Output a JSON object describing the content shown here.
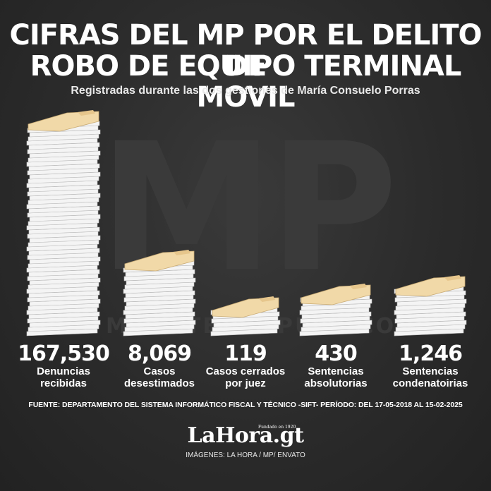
{
  "title_line1": "CIFRAS DEL MP POR EL DELITO DE",
  "title_line2": "ROBO DE EQUIPO TERMINAL MOVIL",
  "subtitle": "Registradas durante las dos gestiones de María Consuelo Porras",
  "watermark": {
    "main": "MP",
    "sub": "MINISTERIO PÚBLICO"
  },
  "chart_data": {
    "type": "bar",
    "categories": [
      "Denuncias recibidas",
      "Casos desestimados",
      "Casos cerrados por juez",
      "Sentencias absolutorias",
      "Sentencias condenatoirias"
    ],
    "values": [
      167530,
      8069,
      119,
      430,
      1246
    ],
    "value_labels": [
      "167,530",
      "8,069",
      "119",
      "430",
      "1,246"
    ],
    "label_lines": [
      [
        "Denuncias",
        "recibidas"
      ],
      [
        "Casos",
        "desestimados"
      ],
      [
        "Casos cerrados",
        "por juez"
      ],
      [
        "Sentencias",
        "absolutorias"
      ],
      [
        "Sentencias",
        "condenatoirias"
      ]
    ],
    "colors": {
      "folder": "#f1d9a8",
      "paper": "#f4f4f4",
      "edge": "#b9b9b9",
      "background": "#2b2b2b"
    }
  },
  "source": "FUENTE: DEPARTAMENTO DEL SISTEMA INFORMÁTICO FISCAL Y TÉCNICO -SIFT- PERÍODO: DEL 17-05-2018 AL 15-02-2025",
  "logo": {
    "text": "LaHora.gt",
    "tagline": "Fundado en 1920"
  },
  "credits": "IMÁGENES: LA HORA / MP/ ENVATO"
}
